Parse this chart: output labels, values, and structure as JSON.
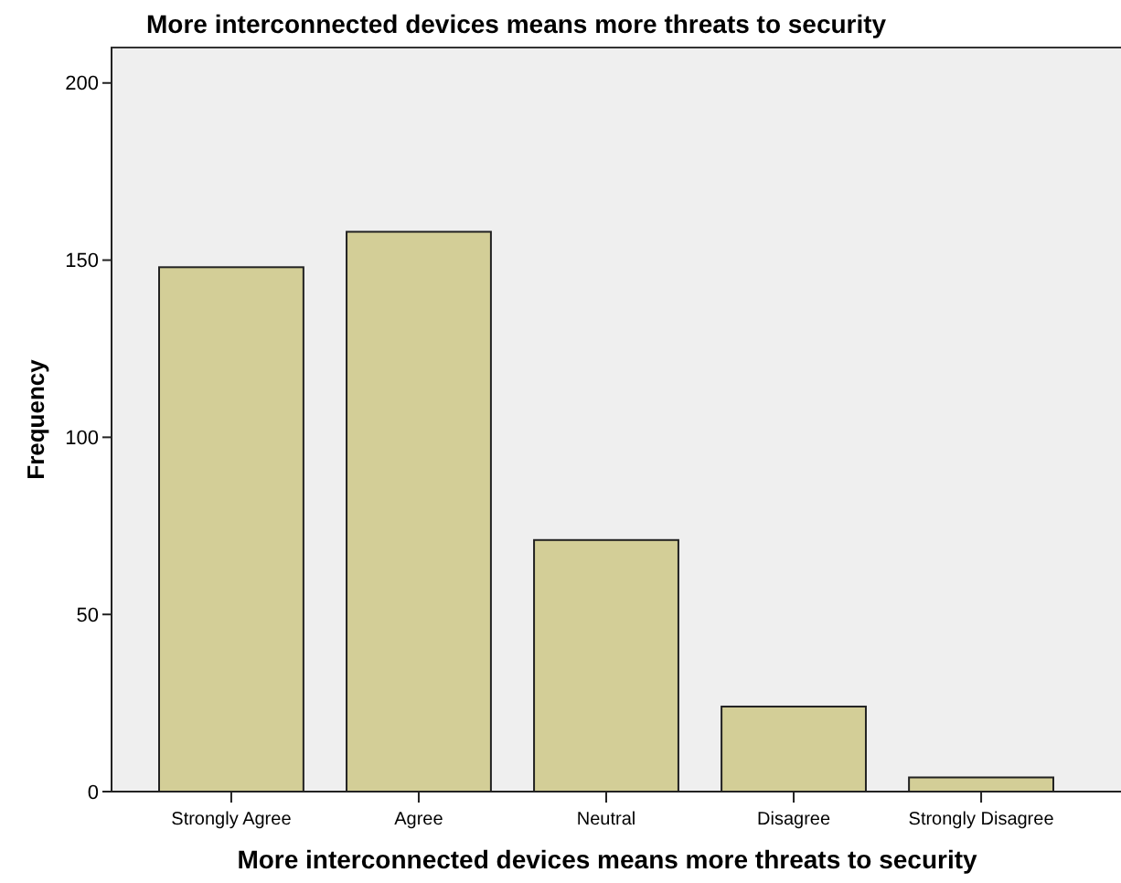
{
  "chart_data": {
    "type": "bar",
    "title": "More interconnected devices means more threats to security",
    "xlabel": "More interconnected devices means more threats to security",
    "ylabel": "Frequency",
    "categories": [
      "Strongly Agree",
      "Agree",
      "Neutral",
      "Disagree",
      "Strongly Disagree"
    ],
    "values": [
      148,
      158,
      71,
      24,
      4
    ],
    "color": "#d3ce97",
    "ylim": [
      0,
      210
    ],
    "yticks": [
      0,
      50,
      100,
      150,
      200
    ],
    "grid": false
  }
}
